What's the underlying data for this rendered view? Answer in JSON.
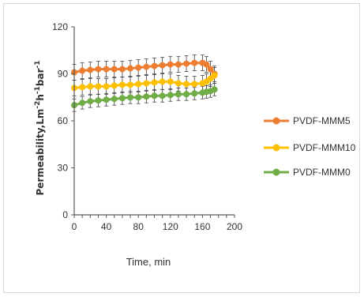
{
  "chart_data": {
    "type": "line",
    "xlabel": "Time, min",
    "ylabel_main": "Permeability,Lm",
    "ylabel_sup1": "-2",
    "ylabel_mid1": "h",
    "ylabel_sup2": "-1",
    "ylabel_mid2": "bar",
    "ylabel_sup3": "-1",
    "xlim": [
      0,
      200
    ],
    "ylim": [
      0,
      120
    ],
    "xticks": [
      0,
      40,
      80,
      120,
      160,
      200
    ],
    "yticks": [
      0,
      30,
      60,
      90,
      120
    ],
    "xtick_labels": [
      "0",
      "40",
      "80",
      "120",
      "160",
      "200"
    ],
    "ytick_labels": [
      "0",
      "30",
      "60",
      "90",
      "120"
    ],
    "grid": false,
    "legend_position": "right",
    "x": [
      0,
      10,
      20,
      30,
      40,
      50,
      60,
      70,
      80,
      90,
      100,
      110,
      120,
      130,
      140,
      150,
      160,
      165,
      170,
      175
    ],
    "series": [
      {
        "name": "PVDF-MMM5",
        "color": "#ed7d31",
        "values": [
          91,
          92,
          92.5,
          93,
          93,
          93,
          93,
          93.5,
          94,
          94.5,
          95,
          95.5,
          96,
          96,
          96.5,
          97,
          97,
          96,
          93,
          90
        ],
        "error": 5
      },
      {
        "name": "PVDF-MMM10",
        "color": "#ffc000",
        "values": [
          81,
          81.5,
          82,
          82,
          82,
          82.5,
          83,
          83,
          83.5,
          84,
          84.5,
          85,
          85,
          84,
          83.5,
          83.5,
          84,
          85,
          87,
          89
        ],
        "error": 5
      },
      {
        "name": "PVDF-MMM0",
        "color": "#70ad47",
        "values": [
          70,
          71.5,
          72.5,
          73,
          73.5,
          74,
          74.5,
          75,
          75,
          75.5,
          76,
          76,
          76.5,
          77,
          77,
          77.5,
          78,
          78.5,
          79,
          80
        ],
        "error": 4
      }
    ]
  }
}
